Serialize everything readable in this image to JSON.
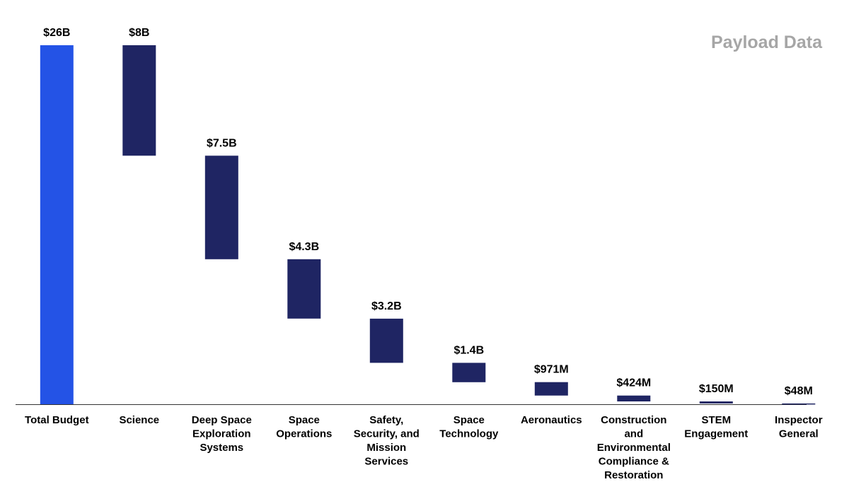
{
  "brand": {
    "text": "Payload Data"
  },
  "colors": {
    "total": "#2453e6",
    "step": "#1f2563",
    "axis": "#333333"
  },
  "chart_data": {
    "type": "bar",
    "subtype": "waterfall",
    "title": "",
    "xlabel": "",
    "ylabel": "",
    "ylim": [
      0,
      26
    ],
    "grid": false,
    "legend": "none",
    "units": "billions USD",
    "categories": [
      "Total Budget",
      "Science",
      "Deep Space Exploration Systems",
      "Space Operations",
      "Safety, Security, and Mission Services",
      "Space Technology",
      "Aeronautics",
      "Construction and Environmental Compliance & Restoration",
      "STEM Engagement",
      "Inspector General"
    ],
    "values": [
      26,
      8,
      7.5,
      4.3,
      3.2,
      1.4,
      0.971,
      0.424,
      0.15,
      0.048
    ],
    "data_labels": [
      "$26B",
      "$8B",
      "$7.5B",
      "$4.3B",
      "$3.2B",
      "$1.4B",
      "$971M",
      "$424M",
      "$150M",
      "$48M"
    ],
    "category_lines": [
      [
        "Total Budget"
      ],
      [
        "Science"
      ],
      [
        "Deep Space",
        "Exploration",
        "Systems"
      ],
      [
        "Space",
        "Operations"
      ],
      [
        "Safety,",
        "Security, and",
        "Mission",
        "Services"
      ],
      [
        "Space",
        "Technology"
      ],
      [
        "Aeronautics"
      ],
      [
        "Construction",
        "and",
        "Environmental",
        "Compliance &",
        "Restoration"
      ],
      [
        "STEM",
        "Engagement"
      ],
      [
        "Inspector",
        "General"
      ]
    ]
  }
}
